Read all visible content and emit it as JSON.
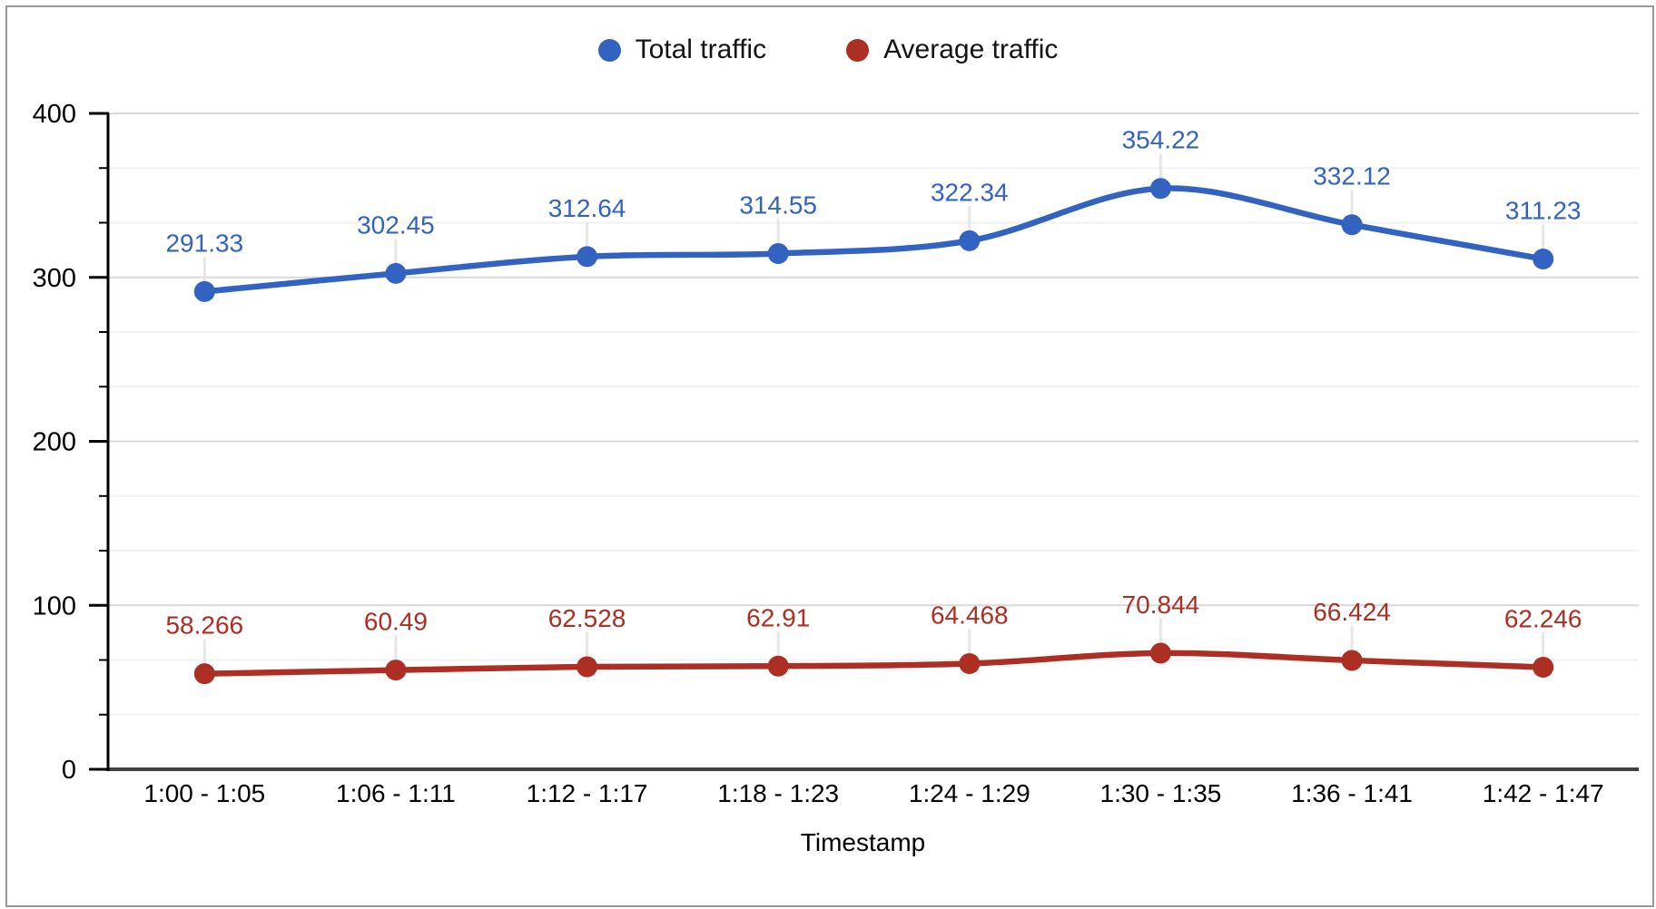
{
  "frame": {
    "border_color": "#999999",
    "background": "#ffffff"
  },
  "legend": {
    "position": "top-center",
    "items": [
      {
        "label": "Total traffic",
        "color": "#3363C1"
      },
      {
        "label": "Average traffic",
        "color": "#AD2E23"
      }
    ]
  },
  "chart_data": {
    "type": "line",
    "smooth": true,
    "point_labels": true,
    "categories": [
      "1:00 - 1:05",
      "1:06 - 1:11",
      "1:12 - 1:17",
      "1:18 - 1:23",
      "1:24 - 1:29",
      "1:30 - 1:35",
      "1:36 - 1:41",
      "1:42 - 1:47"
    ],
    "series": [
      {
        "name": "Total traffic",
        "color": "#3363C1",
        "values": [
          291.33,
          302.45,
          312.64,
          314.55,
          322.34,
          354.22,
          332.12,
          311.23
        ]
      },
      {
        "name": "Average traffic",
        "color": "#AD2E23",
        "values": [
          58.266,
          60.49,
          62.528,
          62.91,
          64.468,
          70.844,
          66.424,
          62.246
        ]
      }
    ],
    "title": "",
    "xlabel": "Timestamp",
    "ylabel": "",
    "ylim": [
      0,
      400
    ],
    "yticks": [
      0,
      100,
      200,
      300,
      400
    ],
    "ytick_labels": [
      "0",
      "100",
      "200",
      "300",
      "400"
    ],
    "minor_gridlines_between_major": 2,
    "grid": true,
    "legend_position": "top-center",
    "colors": {
      "axis_line": "#000000",
      "baseline": "#424242",
      "major_gridline": "#d9d9d9",
      "minor_gridline": "#f2f2f2",
      "label_stem": "#e6e6e6",
      "axis_text": "#000000"
    }
  }
}
